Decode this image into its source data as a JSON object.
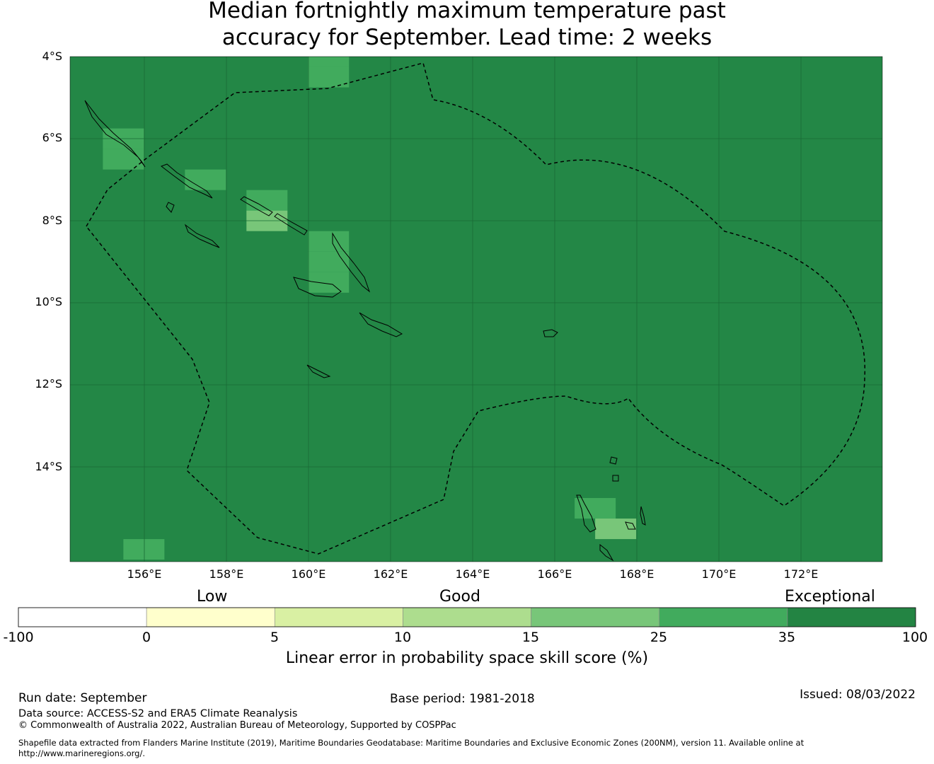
{
  "title": {
    "line1": "Median fortnightly maximum temperature past",
    "line2": "accuracy for September. Lead time: 2 weeks"
  },
  "map": {
    "lat_labels": [
      "4°S",
      "6°S",
      "8°S",
      "10°S",
      "12°S",
      "14°S"
    ],
    "lon_labels": [
      "156°E",
      "158°E",
      "160°E",
      "162°E",
      "164°E",
      "166°E",
      "168°E",
      "170°E",
      "172°E"
    ],
    "extent": {
      "lon_min": 154.2,
      "lon_max": 174.0,
      "lat_top": -4.0,
      "lat_bottom": -16.3
    },
    "base_color": "#238746",
    "cells": [
      {
        "lon": 160.5,
        "lat": -4.0,
        "category": "25-35"
      },
      {
        "lon": 160.5,
        "lat": -4.5,
        "category": "25-35"
      },
      {
        "lon": 155.5,
        "lat": -6.0,
        "category": "25-35"
      },
      {
        "lon": 155.5,
        "lat": -6.5,
        "category": "25-35"
      },
      {
        "lon": 157.5,
        "lat": -7.0,
        "category": "25-35"
      },
      {
        "lon": 159.0,
        "lat": -7.5,
        "category": "25-35"
      },
      {
        "lon": 159.0,
        "lat": -8.0,
        "category": "15-25"
      },
      {
        "lon": 160.5,
        "lat": -8.5,
        "category": "25-35"
      },
      {
        "lon": 160.5,
        "lat": -9.0,
        "category": "25-35"
      },
      {
        "lon": 160.5,
        "lat": -9.5,
        "category": "25-35"
      },
      {
        "lon": 167.0,
        "lat": -15.0,
        "category": "25-35"
      },
      {
        "lon": 167.5,
        "lat": -15.5,
        "category": "15-25"
      },
      {
        "lon": 156.0,
        "lat": -16.0,
        "category": "25-35"
      }
    ]
  },
  "legend": {
    "categories": [
      "Low",
      "Good",
      "Exceptional"
    ],
    "ticks": [
      "-100",
      "0",
      "5",
      "10",
      "15",
      "25",
      "35",
      "100"
    ],
    "colors": [
      "#ffffff",
      "#ffffcc",
      "#d9f0a3",
      "#addd8e",
      "#78c679",
      "#41ab5d",
      "#238443"
    ],
    "label": "Linear error in probability space skill score (%)"
  },
  "footer": {
    "run_date": "Run date: September",
    "base_period": "Base period: 1981-2018",
    "issued": "Issued: 08/03/2022",
    "data_source": "Data source: ACCESS-S2 and ERA5 Climate Reanalysis",
    "copyright": "© Commonwealth of Australia 2022, Australian Bureau of Meteorology, Supported by COSPPac",
    "shapefile_line1": "Shapefile data extracted from Flanders Marine Institute (2019), Maritime Boundaries Geodatabase: Maritime Boundaries and Exclusive Economic Zones (200NM), version 11. Available online at",
    "shapefile_line2": "http://www.marineregions.org/."
  }
}
